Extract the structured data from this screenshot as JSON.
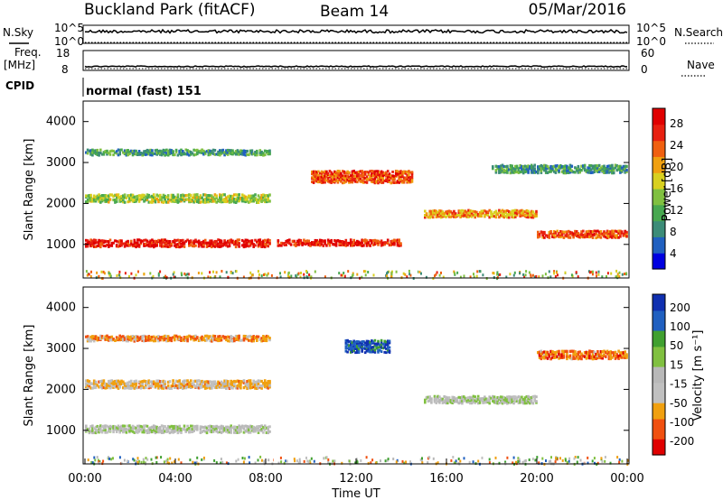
{
  "header": {
    "site": "Buckland Park (fitACF)",
    "beam": "Beam 14",
    "date": "05/Mar/2016"
  },
  "side_labels": {
    "nsky": "N.Sky",
    "nsearch": "N.Search",
    "freq_line1": "Freq.",
    "freq_line2": "[MHz]",
    "nave": "Nave",
    "cpid": "CPID",
    "cpid_value": "normal (fast) 151"
  },
  "noise_axis": {
    "left_top": "10^5",
    "left_bottom": "10^0",
    "right_top": "10^5",
    "right_bottom": "10^0"
  },
  "freq_axis": {
    "left_top": "18",
    "left_bottom": "8",
    "right_top": "60",
    "right_bottom": "0"
  },
  "chart_data": [
    {
      "type": "heatmap",
      "quantity": "Power",
      "ylabel": "Slant Range [km]",
      "yticks": [
        "4000",
        "3000",
        "2000",
        "1000"
      ],
      "ylim_km": [
        180,
        4500
      ],
      "colorbar_label": "Power [dB]",
      "colorbar_ticks": [
        "28",
        "24",
        "20",
        "16",
        "12",
        "8",
        "4"
      ],
      "colorbar_range": [
        0,
        30
      ],
      "bands": [
        {
          "from_h": 0,
          "to_h": 8.2,
          "range_km": 1080,
          "width_km": 180,
          "level_db": 27
        },
        {
          "from_h": 0,
          "to_h": 8.2,
          "range_km": 2180,
          "width_km": 200,
          "level_db": 14
        },
        {
          "from_h": 0,
          "to_h": 8.2,
          "range_km": 3300,
          "width_km": 140,
          "level_db": 9
        },
        {
          "from_h": 8.5,
          "to_h": 14,
          "range_km": 1100,
          "width_km": 150,
          "level_db": 26
        },
        {
          "from_h": 10,
          "to_h": 14.5,
          "range_km": 2700,
          "width_km": 300,
          "level_db": 24
        },
        {
          "from_h": 15,
          "to_h": 20,
          "range_km": 1800,
          "width_km": 180,
          "level_db": 20
        },
        {
          "from_h": 18,
          "to_h": 24,
          "range_km": 2900,
          "width_km": 200,
          "level_db": 9
        },
        {
          "from_h": 20,
          "to_h": 24,
          "range_km": 1300,
          "width_km": 180,
          "level_db": 23
        }
      ]
    },
    {
      "type": "heatmap",
      "quantity": "Velocity",
      "ylabel": "Slant Range [km]",
      "yticks": [
        "4000",
        "3000",
        "2000",
        "1000"
      ],
      "ylim_km": [
        180,
        4500
      ],
      "colorbar_label": "Velocity [m s⁻¹]",
      "colorbar_ticks": [
        "200",
        "100",
        "50",
        "15",
        "-15",
        "-50",
        "-100",
        "-200"
      ],
      "colorbar_range": [
        -250,
        250
      ],
      "bands": [
        {
          "from_h": 0,
          "to_h": 8.2,
          "range_km": 1080,
          "width_km": 180,
          "level_ms": 0
        },
        {
          "from_h": 0,
          "to_h": 8.2,
          "range_km": 2180,
          "width_km": 200,
          "level_ms": -80
        },
        {
          "from_h": 0,
          "to_h": 8.2,
          "range_km": 3300,
          "width_km": 140,
          "level_ms": -120
        },
        {
          "from_h": 11.5,
          "to_h": 13.5,
          "range_km": 3100,
          "width_km": 300,
          "level_ms": 180
        },
        {
          "from_h": 15,
          "to_h": 20,
          "range_km": 1800,
          "width_km": 180,
          "level_ms": 0
        },
        {
          "from_h": 20,
          "to_h": 24,
          "range_km": 2900,
          "width_km": 200,
          "level_ms": -150
        }
      ]
    }
  ],
  "time_axis": {
    "label": "Time UT",
    "ticks": [
      "00:00",
      "04:00",
      "08:00",
      "12:00",
      "16:00",
      "20:00",
      "00:00"
    ]
  }
}
